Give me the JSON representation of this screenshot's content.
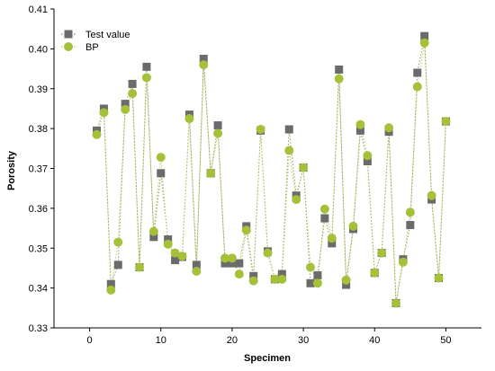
{
  "chart_data": {
    "type": "scatter",
    "title": "",
    "xlabel": "Specimen",
    "ylabel": "Porosity",
    "xlim": [
      -5,
      55
    ],
    "ylim": [
      0.33,
      0.41
    ],
    "x_ticks": [
      0,
      10,
      20,
      30,
      40,
      50
    ],
    "x_tick_labels": [
      "0",
      "10",
      "20",
      "30",
      "40",
      "50"
    ],
    "y_ticks": [
      0.33,
      0.34,
      0.35,
      0.36,
      0.37,
      0.38,
      0.39,
      0.4,
      0.41
    ],
    "y_tick_labels": [
      "0.33",
      "0.34",
      "0.35",
      "0.36",
      "0.37",
      "0.38",
      "0.39",
      "0.40",
      "0.41"
    ],
    "grid": false,
    "legend_position": "top-left",
    "series": [
      {
        "name": "Test value",
        "marker": "square",
        "color": "#6b6b6b",
        "line_style": "dotted",
        "x": [
          1,
          2,
          3,
          4,
          5,
          6,
          7,
          8,
          9,
          10,
          11,
          12,
          13,
          14,
          15,
          16,
          17,
          18,
          19,
          20,
          21,
          22,
          23,
          24,
          25,
          26,
          27,
          28,
          29,
          30,
          31,
          32,
          33,
          34,
          35,
          36,
          37,
          38,
          39,
          40,
          41,
          42,
          43,
          44,
          45,
          46,
          47,
          48,
          49,
          50
        ],
        "values": [
          0.3795,
          0.385,
          0.341,
          0.3458,
          0.3862,
          0.3912,
          0.3452,
          0.3955,
          0.3528,
          0.3688,
          0.3522,
          0.347,
          0.3478,
          0.3835,
          0.3458,
          0.3975,
          0.3688,
          0.3808,
          0.3462,
          0.3462,
          0.3462,
          0.3555,
          0.343,
          0.3795,
          0.3492,
          0.3422,
          0.3435,
          0.3798,
          0.3632,
          0.3702,
          0.3412,
          0.3432,
          0.3575,
          0.3512,
          0.3948,
          0.3408,
          0.3548,
          0.3795,
          0.3718,
          0.3438,
          0.3488,
          0.3792,
          0.3362,
          0.3472,
          0.3558,
          0.394,
          0.4032,
          0.3622,
          0.3425,
          0.3818
        ]
      },
      {
        "name": "BP",
        "marker": "circle",
        "color": "#a5c13a",
        "line_style": "dotted",
        "x": [
          1,
          2,
          3,
          4,
          5,
          6,
          7,
          8,
          9,
          10,
          11,
          12,
          13,
          14,
          15,
          16,
          17,
          18,
          19,
          20,
          21,
          22,
          23,
          24,
          25,
          26,
          27,
          28,
          29,
          30,
          31,
          32,
          33,
          34,
          35,
          36,
          37,
          38,
          39,
          40,
          41,
          42,
          43,
          44,
          45,
          46,
          47,
          48,
          49,
          50
        ],
        "values": [
          0.3785,
          0.384,
          0.3395,
          0.3515,
          0.3848,
          0.3888,
          0.3452,
          0.3928,
          0.3542,
          0.3728,
          0.351,
          0.3488,
          0.348,
          0.3825,
          0.3442,
          0.396,
          0.3688,
          0.3788,
          0.3475,
          0.3475,
          0.3435,
          0.3545,
          0.3418,
          0.3798,
          0.3488,
          0.3422,
          0.3422,
          0.3745,
          0.3622,
          0.3702,
          0.3452,
          0.3412,
          0.3598,
          0.3525,
          0.3925,
          0.342,
          0.3555,
          0.381,
          0.3732,
          0.3438,
          0.3488,
          0.3802,
          0.3362,
          0.3465,
          0.359,
          0.3905,
          0.4015,
          0.3632,
          0.3425,
          0.3818
        ]
      }
    ]
  }
}
